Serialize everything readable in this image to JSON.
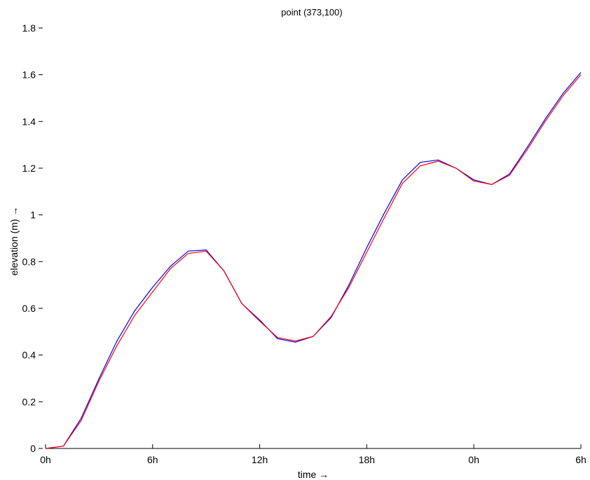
{
  "chart_data": {
    "type": "line",
    "title": "point (373,100)",
    "xlabel": "time →",
    "ylabel": "elevation (m) →",
    "xlim": [
      0,
      30
    ],
    "ylim": [
      0,
      1.8
    ],
    "grid": false,
    "x_tick_values": [
      0,
      6,
      12,
      18,
      24,
      30
    ],
    "x_tick_labels": [
      "0h",
      "6h",
      "12h",
      "18h",
      "0h",
      "6h"
    ],
    "y_tick_values": [
      0,
      0.2,
      0.4,
      0.6,
      0.8,
      1.0,
      1.2,
      1.4,
      1.6,
      1.8
    ],
    "y_tick_labels": [
      "0",
      "0.2",
      "0.4",
      "0.6",
      "0.8",
      "1",
      "1.2",
      "1.4",
      "1.6",
      "1.8"
    ],
    "x": [
      0,
      1,
      2,
      3,
      4,
      5,
      6,
      7,
      8,
      9,
      10,
      11,
      12,
      13,
      14,
      15,
      16,
      17,
      18,
      19,
      20,
      21,
      22,
      23,
      24,
      25,
      26,
      27,
      28,
      29,
      30
    ],
    "series": [
      {
        "color": "#0000ff",
        "values": [
          0,
          0.01,
          0.13,
          0.3,
          0.46,
          0.59,
          0.69,
          0.78,
          0.845,
          0.85,
          0.76,
          0.62,
          0.55,
          0.47,
          0.455,
          0.48,
          0.56,
          0.7,
          0.86,
          1.01,
          1.15,
          1.225,
          1.235,
          1.2,
          1.15,
          1.13,
          1.175,
          1.29,
          1.41,
          1.52,
          1.61
        ]
      },
      {
        "color": "#ff0000",
        "values": [
          0,
          0.01,
          0.12,
          0.29,
          0.44,
          0.57,
          0.67,
          0.77,
          0.835,
          0.845,
          0.76,
          0.62,
          0.545,
          0.475,
          0.46,
          0.48,
          0.565,
          0.69,
          0.84,
          0.99,
          1.135,
          1.21,
          1.23,
          1.2,
          1.145,
          1.13,
          1.17,
          1.28,
          1.4,
          1.51,
          1.6
        ]
      }
    ]
  }
}
